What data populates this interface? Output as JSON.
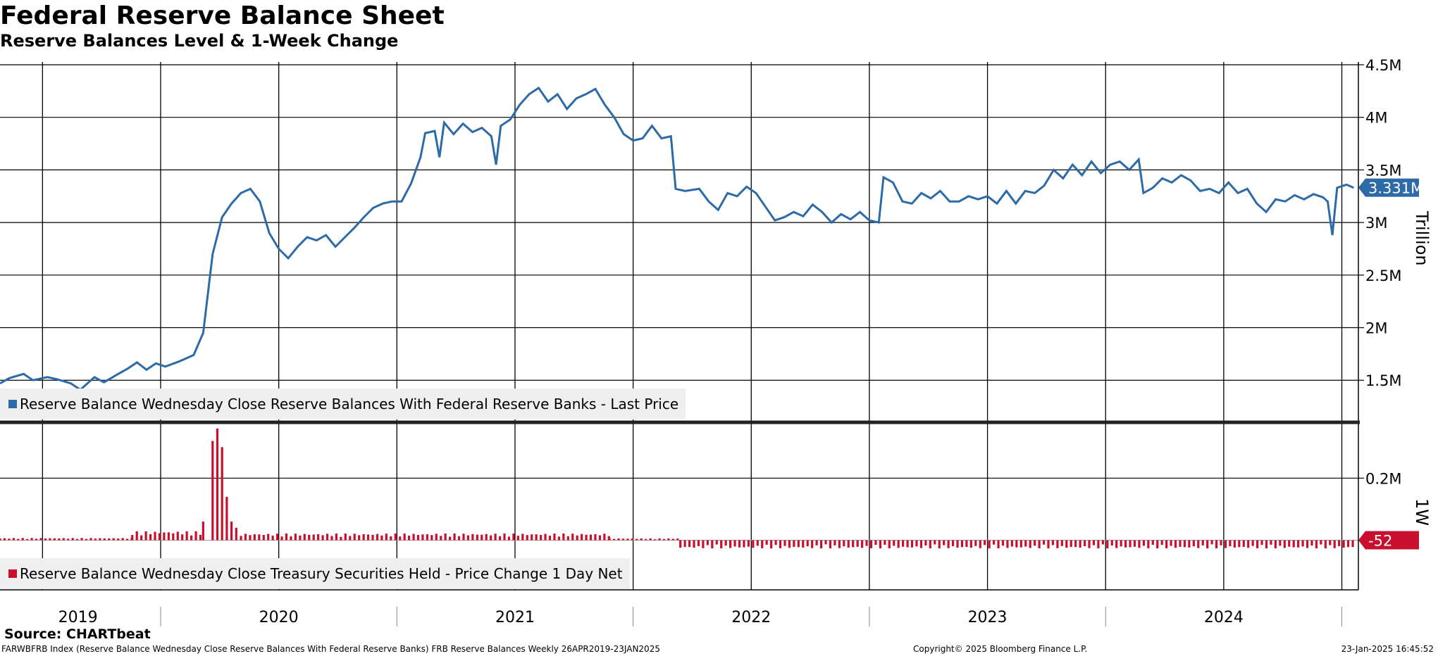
{
  "title": "Federal Reserve Balance Sheet",
  "subtitle": "Reserve Balances Level & 1-Week Change",
  "source": "Source: CHARTbeat",
  "footer": {
    "ticker": "FARWBFRB Index (Reserve Balance Wednesday Close Reserve Balances With Federal Reserve Banks) FRB Reserve Balances  Weekly 26APR2019-23JAN2025",
    "copyright": "Copyright© 2025 Bloomberg Finance L.P.",
    "timestamp": "23-Jan-2025 16:45:52"
  },
  "colors": {
    "level": "#2c6aa8",
    "change": "#c8102e",
    "legend_bg": "#efefef"
  },
  "chart_data": [
    {
      "type": "line",
      "legend": "Reserve Balance Wednesday Close Reserve Balances With Federal Reserve Banks - Last Price",
      "axis_title": "Trillion",
      "last_value_label": "3.331M",
      "y_tick_labels": [
        "1.5M",
        "2M",
        "2.5M",
        "3M",
        "3.5M",
        "4M",
        "4.5M"
      ],
      "y_ticks": [
        1.5,
        2,
        2.5,
        3,
        3.5,
        4,
        4.5
      ],
      "ylim": [
        1.1,
        4.5
      ],
      "xlim": [
        2019.32,
        2025.07
      ],
      "x_tick_labels": [
        "2019",
        "2020",
        "2021",
        "2022",
        "2023",
        "2024"
      ],
      "series": [
        {
          "values": [
            [
              2019.32,
              1.47
            ],
            [
              2019.36,
              1.52
            ],
            [
              2019.42,
              1.56
            ],
            [
              2019.46,
              1.5
            ],
            [
              2019.52,
              1.53
            ],
            [
              2019.56,
              1.51
            ],
            [
              2019.62,
              1.47
            ],
            [
              2019.66,
              1.41
            ],
            [
              2019.72,
              1.53
            ],
            [
              2019.76,
              1.48
            ],
            [
              2019.82,
              1.56
            ],
            [
              2019.86,
              1.61
            ],
            [
              2019.9,
              1.67
            ],
            [
              2019.94,
              1.6
            ],
            [
              2019.98,
              1.66
            ],
            [
              2020.02,
              1.63
            ],
            [
              2020.08,
              1.68
            ],
            [
              2020.14,
              1.74
            ],
            [
              2020.18,
              1.95
            ],
            [
              2020.22,
              2.7
            ],
            [
              2020.26,
              3.05
            ],
            [
              2020.3,
              3.18
            ],
            [
              2020.34,
              3.28
            ],
            [
              2020.38,
              3.32
            ],
            [
              2020.42,
              3.2
            ],
            [
              2020.46,
              2.9
            ],
            [
              2020.5,
              2.75
            ],
            [
              2020.54,
              2.66
            ],
            [
              2020.58,
              2.77
            ],
            [
              2020.62,
              2.86
            ],
            [
              2020.66,
              2.83
            ],
            [
              2020.7,
              2.88
            ],
            [
              2020.74,
              2.77
            ],
            [
              2020.78,
              2.86
            ],
            [
              2020.82,
              2.95
            ],
            [
              2020.86,
              3.05
            ],
            [
              2020.9,
              3.14
            ],
            [
              2020.94,
              3.18
            ],
            [
              2020.98,
              3.2
            ],
            [
              2021.02,
              3.2
            ],
            [
              2021.06,
              3.37
            ],
            [
              2021.1,
              3.62
            ],
            [
              2021.12,
              3.85
            ],
            [
              2021.16,
              3.87
            ],
            [
              2021.18,
              3.62
            ],
            [
              2021.2,
              3.95
            ],
            [
              2021.24,
              3.84
            ],
            [
              2021.28,
              3.94
            ],
            [
              2021.32,
              3.86
            ],
            [
              2021.36,
              3.9
            ],
            [
              2021.4,
              3.82
            ],
            [
              2021.42,
              3.55
            ],
            [
              2021.44,
              3.92
            ],
            [
              2021.48,
              3.98
            ],
            [
              2021.52,
              4.12
            ],
            [
              2021.56,
              4.22
            ],
            [
              2021.6,
              4.28
            ],
            [
              2021.64,
              4.15
            ],
            [
              2021.68,
              4.22
            ],
            [
              2021.72,
              4.08
            ],
            [
              2021.76,
              4.18
            ],
            [
              2021.8,
              4.22
            ],
            [
              2021.84,
              4.27
            ],
            [
              2021.88,
              4.12
            ],
            [
              2021.92,
              4.0
            ],
            [
              2021.96,
              3.84
            ],
            [
              2022.0,
              3.78
            ],
            [
              2022.04,
              3.8
            ],
            [
              2022.08,
              3.92
            ],
            [
              2022.12,
              3.8
            ],
            [
              2022.16,
              3.82
            ],
            [
              2022.18,
              3.32
            ],
            [
              2022.22,
              3.3
            ],
            [
              2022.28,
              3.32
            ],
            [
              2022.32,
              3.2
            ],
            [
              2022.36,
              3.12
            ],
            [
              2022.4,
              3.28
            ],
            [
              2022.44,
              3.25
            ],
            [
              2022.48,
              3.34
            ],
            [
              2022.52,
              3.28
            ],
            [
              2022.56,
              3.15
            ],
            [
              2022.6,
              3.02
            ],
            [
              2022.64,
              3.05
            ],
            [
              2022.68,
              3.1
            ],
            [
              2022.72,
              3.06
            ],
            [
              2022.76,
              3.17
            ],
            [
              2022.8,
              3.1
            ],
            [
              2022.84,
              3.0
            ],
            [
              2022.88,
              3.08
            ],
            [
              2022.92,
              3.03
            ],
            [
              2022.96,
              3.1
            ],
            [
              2023.0,
              3.02
            ],
            [
              2023.04,
              3.0
            ],
            [
              2023.06,
              3.43
            ],
            [
              2023.1,
              3.38
            ],
            [
              2023.14,
              3.2
            ],
            [
              2023.18,
              3.18
            ],
            [
              2023.22,
              3.28
            ],
            [
              2023.26,
              3.23
            ],
            [
              2023.3,
              3.3
            ],
            [
              2023.34,
              3.2
            ],
            [
              2023.38,
              3.2
            ],
            [
              2023.42,
              3.25
            ],
            [
              2023.46,
              3.22
            ],
            [
              2023.5,
              3.25
            ],
            [
              2023.54,
              3.18
            ],
            [
              2023.58,
              3.3
            ],
            [
              2023.62,
              3.18
            ],
            [
              2023.66,
              3.3
            ],
            [
              2023.7,
              3.28
            ],
            [
              2023.74,
              3.35
            ],
            [
              2023.78,
              3.5
            ],
            [
              2023.82,
              3.42
            ],
            [
              2023.86,
              3.55
            ],
            [
              2023.9,
              3.45
            ],
            [
              2023.94,
              3.58
            ],
            [
              2023.98,
              3.47
            ],
            [
              2024.02,
              3.55
            ],
            [
              2024.06,
              3.58
            ],
            [
              2024.1,
              3.5
            ],
            [
              2024.14,
              3.6
            ],
            [
              2024.16,
              3.28
            ],
            [
              2024.2,
              3.33
            ],
            [
              2024.24,
              3.42
            ],
            [
              2024.28,
              3.38
            ],
            [
              2024.32,
              3.45
            ],
            [
              2024.36,
              3.4
            ],
            [
              2024.4,
              3.3
            ],
            [
              2024.44,
              3.32
            ],
            [
              2024.48,
              3.28
            ],
            [
              2024.52,
              3.38
            ],
            [
              2024.56,
              3.28
            ],
            [
              2024.6,
              3.32
            ],
            [
              2024.64,
              3.18
            ],
            [
              2024.68,
              3.1
            ],
            [
              2024.72,
              3.22
            ],
            [
              2024.76,
              3.2
            ],
            [
              2024.8,
              3.26
            ],
            [
              2024.84,
              3.22
            ],
            [
              2024.88,
              3.27
            ],
            [
              2024.92,
              3.24
            ],
            [
              2024.94,
              3.2
            ],
            [
              2024.96,
              2.88
            ],
            [
              2024.98,
              3.33
            ],
            [
              2025.02,
              3.36
            ],
            [
              2025.05,
              3.331
            ]
          ]
        }
      ]
    },
    {
      "type": "bar",
      "legend": "Reserve Balance Wednesday Close Treasury Securities Held - Price Change 1 Day Net",
      "axis_title": "1W",
      "last_value_label": "-52",
      "y_tick_labels": [
        "0.2M"
      ],
      "y_ticks": [
        0.2
      ],
      "ylim": [
        -0.16,
        0.38
      ],
      "xlim": [
        2019.32,
        2025.07
      ],
      "x_tick_labels": [
        "2019",
        "2020",
        "2021",
        "2022",
        "2023",
        "2024"
      ],
      "bar_series": [
        {
          "range": [
            2019.32,
            2019.88
          ],
          "value": 0.006
        },
        {
          "range": [
            2019.88,
            2020.18
          ],
          "value": 0.024
        },
        {
          "spikes": [
            [
              2020.18,
              0.06
            ],
            [
              2020.22,
              0.32
            ],
            [
              2020.24,
              0.36
            ],
            [
              2020.26,
              0.3
            ],
            [
              2020.28,
              0.14
            ],
            [
              2020.3,
              0.06
            ],
            [
              2020.32,
              0.04
            ]
          ]
        },
        {
          "range": [
            2020.34,
            2021.9
          ],
          "value": 0.018
        },
        {
          "range": [
            2021.9,
            2022.2
          ],
          "value": 0.005
        },
        {
          "range": [
            2022.2,
            2025.06
          ],
          "value": -0.022
        }
      ]
    }
  ]
}
